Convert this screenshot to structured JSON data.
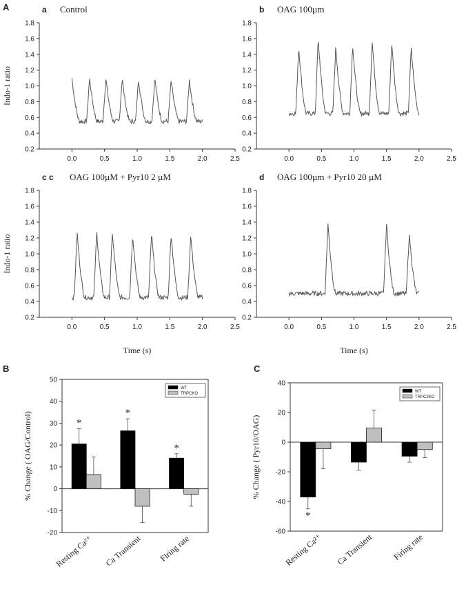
{
  "panel_labels": {
    "A": "A",
    "B": "B",
    "C": "C"
  },
  "colors": {
    "trace": "#555555",
    "wt": "#000000",
    "ko": "#bfbfbf",
    "axis": "#333333"
  },
  "chart_data": [
    {
      "id": "a",
      "type": "line",
      "letter": "a",
      "title": "Control",
      "ylabel": "Indo-1 ratio",
      "xlabel": "",
      "xlim": [
        -0.5,
        2.5
      ],
      "ylim": [
        0.2,
        1.8
      ],
      "xticks": [
        "0.0",
        "0.5",
        "1.0",
        "1.5",
        "2.0",
        "2.5"
      ],
      "yticks": [
        "0.2",
        "0.4",
        "0.6",
        "0.8",
        "1.0",
        "1.2",
        "1.4",
        "1.6",
        "1.8"
      ],
      "x_start": 0.0,
      "x_end": 2.0,
      "baseline": 0.55,
      "peaks": [
        1.1,
        1.1,
        1.1,
        1.1,
        1.09,
        1.1,
        1.07,
        1.07
      ],
      "peak_times": [
        0.0,
        0.27,
        0.52,
        0.77,
        1.02,
        1.27,
        1.52,
        1.8
      ]
    },
    {
      "id": "b",
      "type": "line",
      "letter": "b",
      "title": "OAG 100µm",
      "ylabel": "",
      "xlabel": "",
      "xlim": [
        -0.5,
        2.5
      ],
      "ylim": [
        0.2,
        1.8
      ],
      "xticks": [
        "0.0",
        "0.5",
        "1.0",
        "1.5",
        "2.0",
        "2.5"
      ],
      "yticks": [
        "0.2",
        "0.4",
        "0.6",
        "0.8",
        "1.0",
        "1.2",
        "1.4",
        "1.6",
        "1.8"
      ],
      "x_start": 0.0,
      "x_end": 2.0,
      "baseline": 0.65,
      "peaks": [
        1.5,
        1.6,
        1.5,
        1.52,
        1.57,
        1.55,
        1.48
      ],
      "peak_times": [
        0.15,
        0.45,
        0.72,
        0.98,
        1.28,
        1.58,
        1.88
      ]
    },
    {
      "id": "c",
      "type": "line",
      "letter": "c c",
      "title": "OAG 100µM + Pyr10  2 µM",
      "ylabel": "Indo-1 ratio",
      "xlabel": "Time (s)",
      "xlim": [
        -0.5,
        2.5
      ],
      "ylim": [
        0.2,
        1.8
      ],
      "xticks": [
        "0.0",
        "0.5",
        "1.0",
        "1.5",
        "2.0",
        "2.5"
      ],
      "yticks": [
        "0.2",
        "0.4",
        "0.6",
        "0.8",
        "1.0",
        "1.2",
        "1.4",
        "1.6",
        "1.8"
      ],
      "x_start": 0.0,
      "x_end": 2.0,
      "baseline": 0.45,
      "peaks": [
        1.27,
        1.28,
        1.27,
        1.25,
        1.26,
        1.26,
        1.24
      ],
      "peak_times": [
        0.08,
        0.38,
        0.62,
        0.93,
        1.22,
        1.52,
        1.82
      ]
    },
    {
      "id": "d",
      "type": "line",
      "letter": "d",
      "title": "OAG 100µm + Pyr10  20 µM",
      "ylabel": "",
      "xlabel": "Time (s)",
      "xlim": [
        -0.5,
        2.5
      ],
      "ylim": [
        0.2,
        1.8
      ],
      "xticks": [
        "0.0",
        "0.5",
        "1.0",
        "1.5",
        "2.0",
        "2.5"
      ],
      "yticks": [
        "0.2",
        "0.4",
        "0.6",
        "0.8",
        "1.0",
        "1.2",
        "1.4",
        "1.6",
        "1.8"
      ],
      "x_start": 0.0,
      "x_end": 2.0,
      "baseline": 0.5,
      "peaks": [
        1.38,
        1.38,
        1.26
      ],
      "peak_times": [
        0.6,
        1.5,
        1.85
      ]
    },
    {
      "id": "B",
      "type": "bar",
      "ylabel": "% Change ( OAG/Control)",
      "ylim": [
        -20,
        50
      ],
      "yticks": [
        "-20",
        "-10",
        "0",
        "10",
        "20",
        "30",
        "40",
        "50"
      ],
      "categories": [
        "Resting Ca²⁺",
        "Ca Transient",
        "Firing rate"
      ],
      "series": [
        {
          "name": "WT",
          "values": [
            20.5,
            26.5,
            14
          ],
          "errors": [
            7,
            5.5,
            2
          ]
        },
        {
          "name": "TRPCKO",
          "values": [
            6.5,
            -8,
            -2.5
          ],
          "errors": [
            8,
            7.5,
            5.5
          ]
        }
      ],
      "annotations": [
        "*",
        "*",
        "*"
      ],
      "legend": "top-right"
    },
    {
      "id": "C",
      "type": "bar",
      "ylabel": "% Change ( Pyr10/OAG)",
      "ylim": [
        -60,
        40
      ],
      "yticks": [
        "-60",
        "-40",
        "-20",
        "0",
        "20",
        "40"
      ],
      "categories": [
        "Resting Ca²⁺",
        "Ca Transient",
        "Firing rate"
      ],
      "series": [
        {
          "name": "WT",
          "values": [
            -37,
            -13.5,
            -9.5
          ],
          "errors": [
            8,
            5.5,
            4
          ]
        },
        {
          "name": "TRPC3KO",
          "values": [
            -4.5,
            9.5,
            -5
          ],
          "errors": [
            13.5,
            12,
            5.5
          ]
        }
      ],
      "annotations": [
        "*"
      ],
      "legend": "top-right"
    }
  ]
}
